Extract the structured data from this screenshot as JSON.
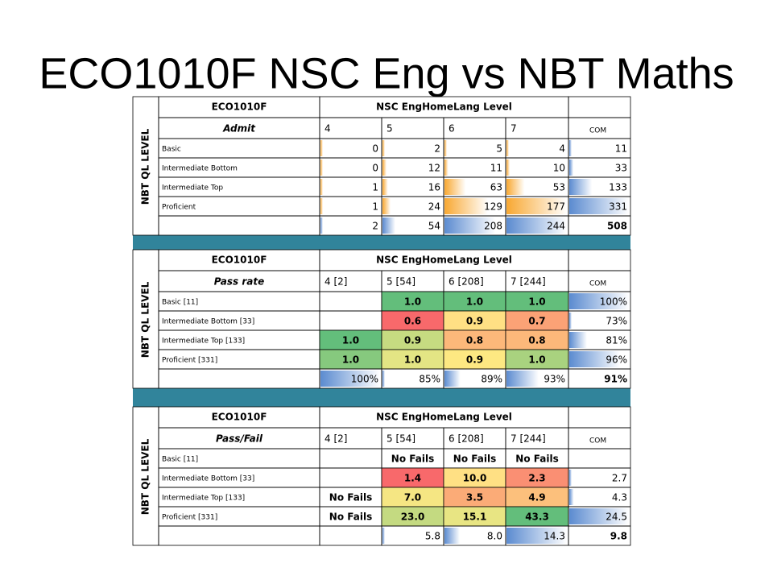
{
  "title": "ECO1010F NSC Eng vs NBT Maths",
  "tables": [
    {
      "corner": "ECO1010F",
      "group": "NSC EngHomeLang Level",
      "side": "NBT QL LEVEL",
      "row_header": "Admit",
      "columns": [
        "4",
        "5",
        "6",
        "7"
      ],
      "com": "COM",
      "body_bars": "#f8a832",
      "rows": [
        {
          "label": "Basic",
          "cells": [
            "0",
            "2",
            "5",
            "4"
          ],
          "com": "11"
        },
        {
          "label": "Intermediate Bottom",
          "cells": [
            "0",
            "12",
            "11",
            "10"
          ],
          "com": "33"
        },
        {
          "label": "Intermediate Top",
          "cells": [
            "1",
            "16",
            "63",
            "53"
          ],
          "com": "133"
        },
        {
          "label": "Proficient",
          "cells": [
            "1",
            "24",
            "129",
            "177"
          ],
          "com": "331"
        }
      ],
      "total": {
        "cells": [
          "2",
          "54",
          "208",
          "244"
        ],
        "com": "508"
      }
    },
    {
      "corner": "ECO1010F",
      "group": "NSC EngHomeLang Level",
      "side": "NBT QL LEVEL",
      "row_header": "Pass rate",
      "columns": [
        "4 [2]",
        "5 [54]",
        "6 [208]",
        "7 [244]"
      ],
      "com": "COM",
      "rows": [
        {
          "label": "Basic [11]",
          "cells": [
            null,
            "1.0",
            "1.0",
            "1.0"
          ],
          "fills": [
            null,
            "#63be7b",
            "#63be7b",
            "#63be7b"
          ],
          "com": "100%"
        },
        {
          "label": "Intermediate Bottom [33]",
          "cells": [
            null,
            "0.6",
            "0.9",
            "0.7"
          ],
          "fills": [
            null,
            "#f8696b",
            "#ffe084",
            "#fba276"
          ],
          "com": "73%"
        },
        {
          "label": "Intermediate Top [133]",
          "cells": [
            "1.0",
            "0.9",
            "0.8",
            "0.8"
          ],
          "fills": [
            "#63be7b",
            "#c6db81",
            "#fcb87a",
            "#fcb87a"
          ],
          "com": "81%"
        },
        {
          "label": "Proficient [331]",
          "cells": [
            "1.0",
            "1.0",
            "0.9",
            "1.0"
          ],
          "fills": [
            "#86c97e",
            "#e3e584",
            "#fde882",
            "#a9d27f"
          ],
          "com": "96%"
        }
      ],
      "total": {
        "cells": [
          "100%",
          "85%",
          "89%",
          "93%"
        ],
        "com": "91%"
      }
    },
    {
      "corner": "ECO1010F",
      "group": "NSC EngHomeLang Level",
      "side": "NBT QL LEVEL",
      "row_header": "Pass/Fail",
      "columns": [
        "4 [2]",
        "5 [54]",
        "6 [208]",
        "7 [244]"
      ],
      "com": "COM",
      "rows": [
        {
          "label": "Basic [11]",
          "cells": [
            null,
            "No Fails",
            "No Fails",
            "No Fails"
          ],
          "com": null
        },
        {
          "label": "Intermediate Bottom [33]",
          "cells": [
            null,
            "1.4",
            "10.0",
            "2.3"
          ],
          "fills": [
            null,
            "#f8696b",
            "#ffe084",
            "#fa8f73"
          ],
          "com": "2.7"
        },
        {
          "label": "Intermediate Top [133]",
          "cells": [
            "No Fails",
            "7.0",
            "3.5",
            "4.9"
          ],
          "fills": [
            null,
            "#f5e683",
            "#fbab77",
            "#fcc07c"
          ],
          "com": "4.3"
        },
        {
          "label": "Proficient [331]",
          "cells": [
            "No Fails",
            "23.0",
            "15.1",
            "43.3"
          ],
          "fills": [
            null,
            "#c4da81",
            "#e8e583",
            "#63be7b"
          ],
          "com": "24.5"
        }
      ],
      "total": {
        "cells": [
          null,
          "5.8",
          "8.0",
          "14.3"
        ],
        "com": "9.8"
      }
    }
  ]
}
